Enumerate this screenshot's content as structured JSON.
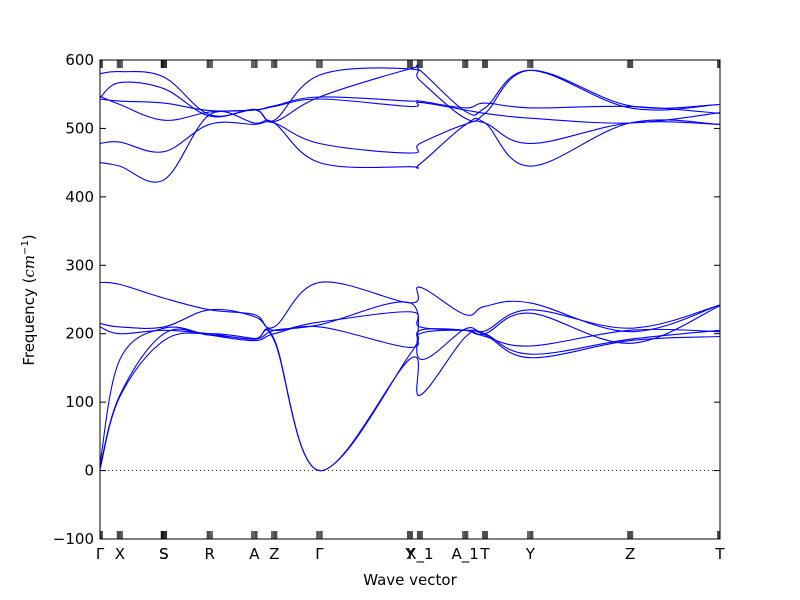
{
  "chart_data": {
    "type": "line",
    "xlabel": "Wave vector",
    "ylabel": "Frequency",
    "ylabel_unit_base": "cm",
    "ylabel_unit_exp": "−1",
    "ylim": [
      -100,
      600
    ],
    "yticks": [
      -100,
      0,
      100,
      200,
      300,
      400,
      500,
      600
    ],
    "xlim": [
      0,
      1
    ],
    "grid": false,
    "line_color": "#0000ff",
    "zero_line": true,
    "high_symmetry_points": [
      {
        "label": "Γ",
        "x": 0.0
      },
      {
        "label": "X",
        "x": 0.032
      },
      {
        "label": "S",
        "x": 0.103
      },
      {
        "label": "S",
        "x": 0.103
      },
      {
        "label": "R",
        "x": 0.177
      },
      {
        "label": "A",
        "x": 0.249
      },
      {
        "label": "Z",
        "x": 0.281
      },
      {
        "label": "Γ",
        "x": 0.354
      },
      {
        "label": "Y",
        "x": 0.5
      },
      {
        "label": "X_1",
        "x": 0.516
      },
      {
        "label": "A_1",
        "x": 0.589
      },
      {
        "label": "T",
        "x": 0.621
      },
      {
        "label": "Y",
        "x": 0.694
      },
      {
        "label": "Z",
        "x": 0.855
      },
      {
        "label": "T",
        "x": 1.0
      }
    ],
    "series": [
      {
        "x": [
          0,
          0.032,
          0.103,
          0.177,
          0.249,
          0.281,
          0.354,
          0.5,
          0.516,
          0.589,
          0.621,
          0.694,
          0.855,
          1.0
        ],
        "y": [
          2,
          108,
          190,
          200,
          193,
          190,
          0,
          163,
          110,
          195,
          198,
          165,
          190,
          196
        ]
      },
      {
        "x": [
          0,
          0.032,
          0.103,
          0.177,
          0.249,
          0.281,
          0.354,
          0.5,
          0.516,
          0.589,
          0.621,
          0.694,
          0.855,
          1.0
        ],
        "y": [
          5,
          110,
          200,
          198,
          192,
          192,
          0,
          170,
          200,
          205,
          200,
          170,
          192,
          205
        ]
      },
      {
        "x": [
          0,
          0.032,
          0.103,
          0.177,
          0.249,
          0.281,
          0.354,
          0.5,
          0.516,
          0.589,
          0.621,
          0.694,
          0.855,
          1.0
        ],
        "y": [
          10,
          162,
          208,
          198,
          190,
          200,
          210,
          180,
          205,
          205,
          196,
          182,
          205,
          203
        ]
      },
      {
        "x": [
          0,
          0.032,
          0.103,
          0.177,
          0.249,
          0.281,
          0.354,
          0.5,
          0.516,
          0.589,
          0.621,
          0.694,
          0.855,
          1.0
        ],
        "y": [
          210,
          200,
          205,
          200,
          192,
          205,
          213,
          245,
          163,
          207,
          204,
          235,
          208,
          242
        ]
      },
      {
        "x": [
          0,
          0.032,
          0.103,
          0.177,
          0.249,
          0.281,
          0.354,
          0.5,
          0.516,
          0.589,
          0.621,
          0.694,
          0.855,
          1.0
        ],
        "y": [
          215,
          210,
          210,
          235,
          225,
          205,
          217,
          232,
          210,
          205,
          200,
          230,
          186,
          241
        ]
      },
      {
        "x": [
          0,
          0.032,
          0.103,
          0.177,
          0.249,
          0.281,
          0.354,
          0.5,
          0.516,
          0.589,
          0.621,
          0.694,
          0.855,
          1.0
        ],
        "y": [
          275,
          272,
          252,
          235,
          228,
          210,
          275,
          245,
          268,
          228,
          240,
          245,
          203,
          242
        ]
      },
      {
        "x": [
          0,
          0.032,
          0.103,
          0.177,
          0.249,
          0.281,
          0.354,
          0.5,
          0.516,
          0.589,
          0.621,
          0.694,
          0.855,
          1.0
        ],
        "y": [
          450,
          445,
          425,
          520,
          508,
          508,
          450,
          444,
          448,
          505,
          508,
          445,
          508,
          506
        ]
      },
      {
        "x": [
          0,
          0.032,
          0.103,
          0.177,
          0.249,
          0.281,
          0.354,
          0.5,
          0.516,
          0.589,
          0.621,
          0.694,
          0.855,
          1.0
        ],
        "y": [
          478,
          480,
          466,
          506,
          506,
          508,
          478,
          464,
          478,
          506,
          508,
          478,
          508,
          506
        ]
      },
      {
        "x": [
          0,
          0.032,
          0.103,
          0.177,
          0.249,
          0.281,
          0.354,
          0.5,
          0.516,
          0.589,
          0.621,
          0.694,
          0.855,
          1.0
        ],
        "y": [
          543,
          540,
          537,
          526,
          527,
          532,
          543,
          532,
          538,
          527,
          522,
          515,
          508,
          523
        ]
      },
      {
        "x": [
          0,
          0.032,
          0.103,
          0.177,
          0.249,
          0.281,
          0.354,
          0.5,
          0.516,
          0.589,
          0.621,
          0.694,
          0.855,
          1.0
        ],
        "y": [
          547,
          535,
          512,
          524,
          527,
          533,
          546,
          540,
          540,
          530,
          537,
          530,
          532,
          522
        ]
      },
      {
        "x": [
          0,
          0.032,
          0.103,
          0.177,
          0.249,
          0.281,
          0.354,
          0.5,
          0.516,
          0.589,
          0.621,
          0.694,
          0.855,
          1.0
        ],
        "y": [
          545,
          567,
          558,
          518,
          527,
          510,
          546,
          587,
          585,
          525,
          530,
          585,
          530,
          535
        ]
      },
      {
        "x": [
          0,
          0.032,
          0.103,
          0.177,
          0.249,
          0.281,
          0.354,
          0.5,
          0.516,
          0.589,
          0.621,
          0.694,
          0.855,
          1.0
        ],
        "y": [
          580,
          583,
          575,
          520,
          528,
          512,
          578,
          587,
          570,
          515,
          522,
          585,
          533,
          535
        ]
      }
    ]
  }
}
